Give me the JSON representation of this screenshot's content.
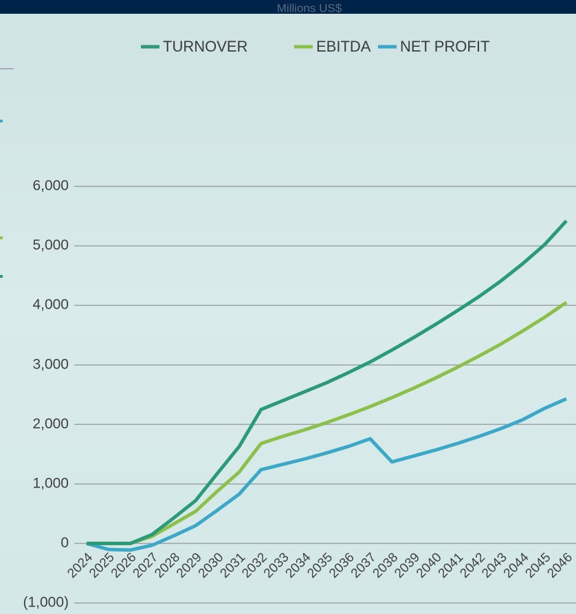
{
  "chart_data": {
    "type": "line",
    "y_label": "Millions US$",
    "categories": [
      "2024",
      "2025",
      "2026",
      "2027",
      "2028",
      "2029",
      "2030",
      "2031",
      "2032",
      "2033",
      "2034",
      "2035",
      "2036",
      "2037",
      "2038",
      "2039",
      "2040",
      "2041",
      "2042",
      "2043",
      "2044",
      "2045",
      "2046"
    ],
    "series": [
      {
        "name": "TURNOVER",
        "color": "#2a9a78",
        "values": [
          0,
          0,
          0,
          150,
          430,
          720,
          1180,
          1630,
          2250,
          2400,
          2550,
          2700,
          2870,
          3050,
          3250,
          3460,
          3680,
          3910,
          4150,
          4410,
          4700,
          5020,
          5420
        ]
      },
      {
        "name": "EBITDA",
        "color": "#8cc04b",
        "values": [
          0,
          0,
          0,
          120,
          330,
          540,
          880,
          1200,
          1680,
          1800,
          1910,
          2030,
          2160,
          2300,
          2450,
          2610,
          2780,
          2960,
          3150,
          3350,
          3570,
          3800,
          4050
        ]
      },
      {
        "name": "NET PROFIT",
        "color": "#3ba8c8",
        "values": [
          0,
          -100,
          -110,
          -30,
          130,
          300,
          560,
          830,
          1240,
          1330,
          1420,
          1520,
          1630,
          1760,
          1370,
          1470,
          1570,
          1680,
          1800,
          1930,
          2080,
          2270,
          2430
        ]
      }
    ],
    "ylim": [
      -1000,
      6000
    ],
    "yticks": [
      {
        "value": -1000,
        "label": "(1,000)"
      },
      0,
      {
        "value": 1000,
        "label": "1,000"
      },
      {
        "value": 2000,
        "label": "2,000"
      },
      {
        "value": 3000,
        "label": "3,000"
      },
      {
        "value": 4000,
        "label": "4,000"
      },
      {
        "value": 5000,
        "label": "5,000"
      },
      {
        "value": 6000,
        "label": "6,000"
      }
    ],
    "grid": true,
    "legend": "top"
  }
}
